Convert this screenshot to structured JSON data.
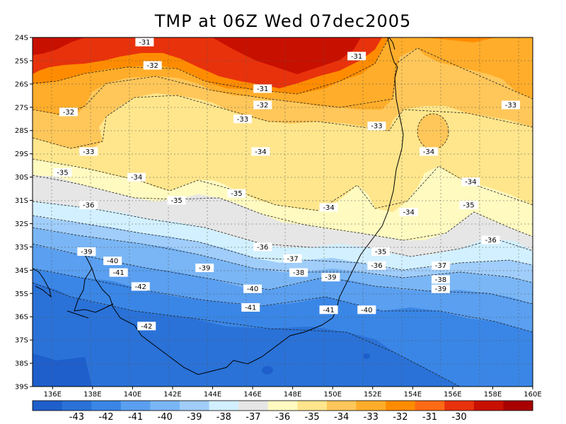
{
  "title": "TMP at 06Z Wed 07dec2005",
  "map": {
    "variable": "TMP",
    "lon_ticks": [
      "136E",
      "138E",
      "140E",
      "142E",
      "144E",
      "146E",
      "148E",
      "150E",
      "152E",
      "154E",
      "156E",
      "158E",
      "160E"
    ],
    "lat_ticks": [
      "24S",
      "25S",
      "26S",
      "27S",
      "28S",
      "29S",
      "30S",
      "31S",
      "32S",
      "33S",
      "34S",
      "35S",
      "36S",
      "37S",
      "38S",
      "39S"
    ]
  },
  "contour_labels": [
    {
      "text": "-31",
      "lon": 140.6,
      "lat": -24.2
    },
    {
      "text": "-31",
      "lon": 151.2,
      "lat": -24.8
    },
    {
      "text": "-32",
      "lon": 141.0,
      "lat": -25.2
    },
    {
      "text": "-31",
      "lon": 146.5,
      "lat": -26.2
    },
    {
      "text": "-32",
      "lon": 146.5,
      "lat": -26.9
    },
    {
      "text": "-32",
      "lon": 136.8,
      "lat": -27.2
    },
    {
      "text": "-33",
      "lon": 145.5,
      "lat": -27.5
    },
    {
      "text": "-33",
      "lon": 152.2,
      "lat": -27.8
    },
    {
      "text": "-33",
      "lon": 158.9,
      "lat": -26.9
    },
    {
      "text": "-33",
      "lon": 137.8,
      "lat": -28.9
    },
    {
      "text": "-34",
      "lon": 146.4,
      "lat": -28.9
    },
    {
      "text": "-34",
      "lon": 154.8,
      "lat": -28.9
    },
    {
      "text": "-35",
      "lon": 136.5,
      "lat": -29.8
    },
    {
      "text": "-34",
      "lon": 140.2,
      "lat": -30.0
    },
    {
      "text": "-34",
      "lon": 156.9,
      "lat": -30.2
    },
    {
      "text": "-35",
      "lon": 145.2,
      "lat": -30.7
    },
    {
      "text": "-35",
      "lon": 142.2,
      "lat": -31.0
    },
    {
      "text": "-36",
      "lon": 137.8,
      "lat": -31.2
    },
    {
      "text": "-34",
      "lon": 149.8,
      "lat": -31.3
    },
    {
      "text": "-34",
      "lon": 153.8,
      "lat": -31.5
    },
    {
      "text": "-35",
      "lon": 156.8,
      "lat": -31.2
    },
    {
      "text": "-36",
      "lon": 157.9,
      "lat": -32.7
    },
    {
      "text": "-36",
      "lon": 146.5,
      "lat": -33.0
    },
    {
      "text": "-39",
      "lon": 137.7,
      "lat": -33.2
    },
    {
      "text": "-35",
      "lon": 152.4,
      "lat": -33.2
    },
    {
      "text": "-37",
      "lon": 148.0,
      "lat": -33.5
    },
    {
      "text": "-40",
      "lon": 139.0,
      "lat": -33.6
    },
    {
      "text": "-36",
      "lon": 152.2,
      "lat": -33.8
    },
    {
      "text": "-37",
      "lon": 155.4,
      "lat": -33.8
    },
    {
      "text": "-39",
      "lon": 143.6,
      "lat": -33.9
    },
    {
      "text": "-38",
      "lon": 148.3,
      "lat": -34.1
    },
    {
      "text": "-41",
      "lon": 139.3,
      "lat": -34.1
    },
    {
      "text": "-39",
      "lon": 149.9,
      "lat": -34.3
    },
    {
      "text": "-38",
      "lon": 155.4,
      "lat": -34.4
    },
    {
      "text": "-42",
      "lon": 140.4,
      "lat": -34.7
    },
    {
      "text": "-40",
      "lon": 146.0,
      "lat": -34.8
    },
    {
      "text": "-39",
      "lon": 155.4,
      "lat": -34.8
    },
    {
      "text": "-41",
      "lon": 145.9,
      "lat": -35.6
    },
    {
      "text": "-41",
      "lon": 149.8,
      "lat": -35.7
    },
    {
      "text": "-40",
      "lon": 151.7,
      "lat": -35.7
    },
    {
      "text": "-42",
      "lon": 140.7,
      "lat": -36.4
    }
  ],
  "colorbar": {
    "colors": [
      "#1e5fcc",
      "#2a72d8",
      "#3a86e6",
      "#5a9ff0",
      "#7ab6f5",
      "#a0cdfa",
      "#d2f0ff",
      "#e6e6e6",
      "#fffac0",
      "#ffe68c",
      "#ffc75a",
      "#ffad2a",
      "#ff8c00",
      "#ff6a14",
      "#e8320c",
      "#c81000",
      "#a80000"
    ],
    "labels": [
      "-43",
      "-42",
      "-41",
      "-40",
      "-39",
      "-38",
      "-37",
      "-36",
      "-35",
      "-34",
      "-33",
      "-32",
      "-31",
      "-30"
    ]
  }
}
